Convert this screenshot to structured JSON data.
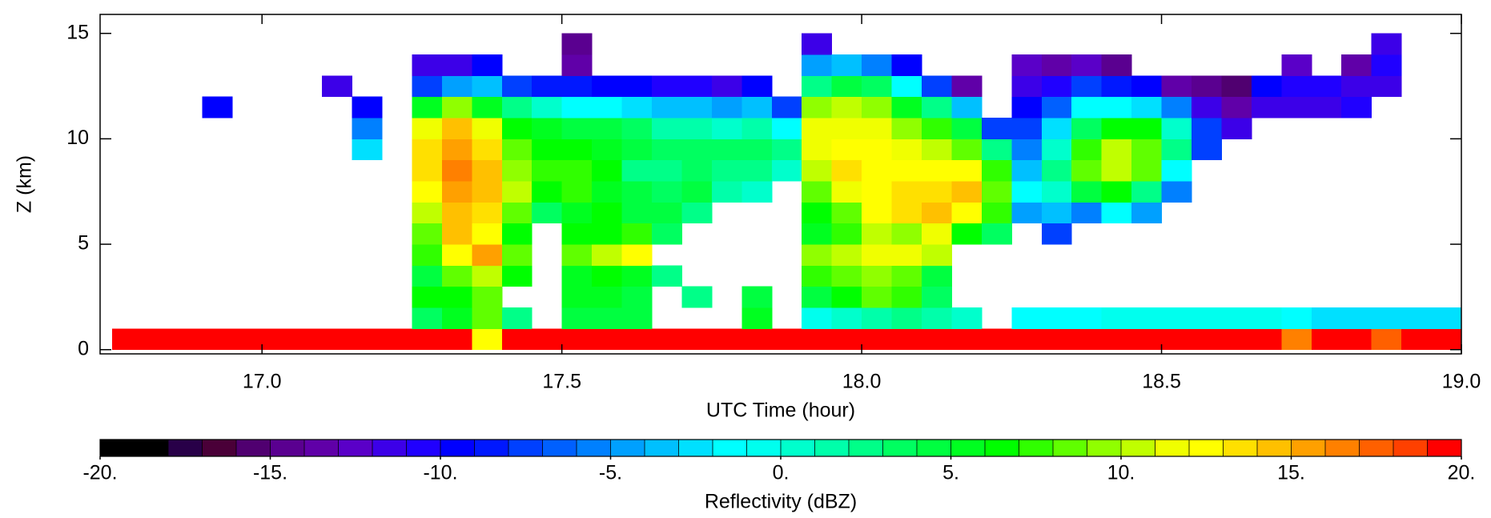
{
  "chart_data": {
    "type": "heatmap",
    "xlabel": "UTC Time (hour)",
    "ylabel": "Z (km)",
    "xlim": [
      16.73,
      19.0
    ],
    "ylim": [
      -0.2,
      15.9
    ],
    "xticks": [
      {
        "value": 17.0,
        "label": "17.0"
      },
      {
        "value": 17.5,
        "label": "17.5"
      },
      {
        "value": 18.0,
        "label": "18.0"
      },
      {
        "value": 18.5,
        "label": "18.5"
      },
      {
        "value": 19.0,
        "label": "19.0"
      }
    ],
    "yticks": [
      0,
      5,
      10,
      15
    ],
    "x": [
      16.775,
      16.825,
      16.875,
      16.925,
      16.975,
      17.025,
      17.075,
      17.125,
      17.175,
      17.225,
      17.275,
      17.325,
      17.375,
      17.425,
      17.475,
      17.525,
      17.575,
      17.625,
      17.675,
      17.725,
      17.775,
      17.825,
      17.875,
      17.925,
      17.975,
      18.025,
      18.075,
      18.125,
      18.175,
      18.225,
      18.275,
      18.325,
      18.375,
      18.425,
      18.475,
      18.525,
      18.575,
      18.625,
      18.675,
      18.725,
      18.775,
      18.825,
      18.875,
      18.925,
      18.975
    ],
    "y": [
      0.5,
      1.5,
      2.5,
      3.5,
      4.5,
      5.5,
      6.5,
      7.5,
      8.5,
      9.5,
      10.5,
      11.5,
      12.5,
      13.5,
      14.5,
      15.5
    ],
    "values": [
      [
        19,
        null,
        null,
        null,
        null,
        null,
        null,
        null,
        null,
        null,
        null,
        null,
        null,
        null,
        null,
        null
      ],
      [
        19,
        null,
        null,
        null,
        null,
        null,
        null,
        null,
        null,
        null,
        null,
        null,
        null,
        null,
        null,
        null
      ],
      [
        19,
        null,
        null,
        null,
        null,
        null,
        null,
        null,
        null,
        null,
        null,
        null,
        null,
        null,
        null,
        null
      ],
      [
        19,
        null,
        null,
        null,
        null,
        null,
        null,
        null,
        null,
        null,
        null,
        -10,
        null,
        null,
        null,
        null
      ],
      [
        19,
        null,
        null,
        null,
        null,
        null,
        null,
        null,
        null,
        null,
        null,
        null,
        null,
        null,
        null,
        null
      ],
      [
        19,
        null,
        null,
        null,
        null,
        null,
        null,
        null,
        null,
        null,
        null,
        null,
        null,
        null,
        null,
        null
      ],
      [
        19,
        null,
        null,
        null,
        null,
        null,
        null,
        null,
        null,
        null,
        null,
        null,
        null,
        null,
        null,
        null
      ],
      [
        19,
        null,
        null,
        null,
        null,
        null,
        null,
        null,
        null,
        null,
        null,
        null,
        -12,
        null,
        null,
        null
      ],
      [
        19,
        null,
        null,
        null,
        null,
        null,
        null,
        null,
        null,
        -3,
        -6,
        -10,
        null,
        null,
        null,
        null
      ],
      [
        19,
        null,
        null,
        null,
        null,
        null,
        null,
        null,
        null,
        null,
        null,
        null,
        null,
        null,
        null,
        null
      ],
      [
        19,
        3,
        6,
        4,
        7,
        8,
        10,
        12,
        13,
        13,
        11,
        5,
        -8,
        -12,
        null,
        null
      ],
      [
        19,
        5,
        6,
        8,
        12,
        14,
        14,
        15,
        16,
        15,
        14,
        9,
        -5,
        -12,
        null,
        null
      ],
      [
        12,
        8,
        8,
        10,
        15,
        12,
        13,
        14,
        14,
        13,
        11,
        5,
        -4,
        -10,
        null,
        null
      ],
      [
        19,
        2,
        null,
        6,
        8,
        6,
        8,
        10,
        9,
        8,
        6,
        2,
        -8,
        null,
        null,
        null
      ],
      [
        19,
        null,
        null,
        null,
        null,
        null,
        3,
        6,
        7,
        6,
        5,
        0,
        -9,
        null,
        null,
        null
      ],
      [
        19,
        4,
        5,
        5,
        8,
        6,
        5,
        7,
        7,
        6,
        4,
        -2,
        -9,
        -14,
        -15,
        null
      ],
      [
        19,
        4,
        5,
        6,
        10,
        6,
        6,
        5,
        6,
        5,
        4,
        -2,
        -10,
        null,
        null,
        null
      ],
      [
        19,
        4,
        4,
        5,
        12,
        7,
        4,
        4,
        2,
        4,
        3,
        -3,
        -10,
        null,
        null,
        null
      ],
      [
        19,
        null,
        null,
        2,
        null,
        3,
        4,
        3,
        2,
        3,
        1,
        -4,
        -11,
        null,
        null,
        null
      ],
      [
        19,
        null,
        2,
        null,
        null,
        null,
        2,
        4,
        3,
        3,
        1,
        -4,
        -11,
        null,
        null,
        null
      ],
      [
        19,
        null,
        null,
        null,
        null,
        null,
        null,
        1,
        2,
        3,
        0,
        -5,
        -12,
        null,
        null,
        null
      ],
      [
        19,
        5,
        4,
        null,
        null,
        null,
        null,
        0,
        2,
        3,
        1,
        -4,
        -10,
        null,
        null,
        null
      ],
      [
        19,
        null,
        null,
        null,
        null,
        null,
        null,
        null,
        0,
        2,
        -2,
        -8,
        null,
        null,
        null,
        null
      ],
      [
        19,
        -1,
        4,
        7,
        9,
        5,
        6,
        8,
        10,
        11,
        11,
        9,
        2,
        -5,
        -12,
        null
      ],
      [
        19,
        0,
        6,
        8,
        10,
        7,
        8,
        11,
        13,
        12,
        11,
        10,
        4,
        -4,
        null,
        null
      ],
      [
        19,
        1,
        8,
        9,
        11,
        10,
        12,
        12,
        12,
        12,
        11,
        9,
        3,
        -6,
        null,
        null
      ],
      [
        19,
        2,
        7,
        8,
        11,
        9,
        13,
        13,
        12,
        11,
        9,
        5,
        -2,
        -10,
        null,
        null
      ],
      [
        19,
        1,
        3,
        4,
        10,
        11,
        14,
        13,
        12,
        10,
        7,
        2,
        -8,
        null,
        null,
        null
      ],
      [
        19,
        0,
        null,
        null,
        null,
        6,
        12,
        14,
        12,
        8,
        4,
        -4,
        -14,
        null,
        null,
        null
      ],
      [
        19,
        null,
        null,
        null,
        null,
        3,
        7,
        8,
        7,
        2,
        -8,
        null,
        null,
        null,
        null,
        null
      ],
      [
        19,
        -2,
        null,
        null,
        null,
        null,
        -5,
        -2,
        -4,
        -6,
        -8,
        -10,
        -12,
        -13,
        null,
        null
      ],
      [
        19,
        -2,
        null,
        null,
        null,
        -8,
        -4,
        0,
        2,
        0,
        -3,
        -7,
        -11,
        -14,
        null,
        null
      ],
      [
        19,
        -2,
        null,
        null,
        null,
        null,
        -6,
        4,
        8,
        7,
        3,
        -2,
        -8,
        -13,
        null,
        null
      ],
      [
        19,
        -1,
        null,
        null,
        null,
        null,
        -2,
        6,
        10,
        10,
        6,
        -2,
        -9,
        -15,
        null,
        null
      ],
      [
        19,
        -1,
        null,
        null,
        null,
        null,
        -5,
        2,
        8,
        8,
        6,
        -3,
        -10,
        null,
        null,
        null
      ],
      [
        19,
        -1,
        null,
        null,
        null,
        null,
        null,
        -6,
        -2,
        2,
        0,
        -6,
        -14,
        null,
        null,
        null
      ],
      [
        19,
        -1,
        null,
        null,
        null,
        null,
        null,
        null,
        null,
        -8,
        -8,
        -12,
        -15,
        null,
        null,
        null
      ],
      [
        19,
        -1,
        null,
        null,
        null,
        null,
        null,
        null,
        null,
        null,
        -12,
        -14,
        -16,
        null,
        null,
        null
      ],
      [
        19,
        -1,
        null,
        null,
        null,
        null,
        null,
        null,
        null,
        null,
        null,
        -12,
        -10,
        null,
        null,
        null
      ],
      [
        16,
        -2,
        null,
        null,
        null,
        null,
        null,
        null,
        null,
        null,
        null,
        -12,
        -11,
        -13,
        null,
        null
      ],
      [
        19,
        -3,
        null,
        null,
        null,
        null,
        null,
        null,
        null,
        null,
        null,
        -12,
        -11,
        null,
        null,
        null
      ],
      [
        19,
        -3,
        null,
        null,
        null,
        null,
        null,
        null,
        null,
        null,
        null,
        -11,
        -12,
        -14,
        null,
        null
      ],
      [
        17,
        -3,
        null,
        null,
        null,
        null,
        null,
        null,
        null,
        null,
        null,
        null,
        -12,
        -11,
        -12,
        null
      ],
      [
        19,
        -3,
        null,
        null,
        null,
        null,
        null,
        null,
        null,
        null,
        null,
        null,
        null,
        null,
        null,
        null
      ],
      [
        19,
        -3,
        null,
        null,
        null,
        null,
        null,
        null,
        null,
        null,
        null,
        null,
        null,
        null,
        null,
        null
      ]
    ],
    "colorbar": {
      "label": "Reflectivity (dBZ)",
      "lim": [
        -20,
        20
      ],
      "ticks": [
        {
          "value": -20,
          "label": "-20."
        },
        {
          "value": -15,
          "label": "-15."
        },
        {
          "value": -10,
          "label": "-10."
        },
        {
          "value": -5,
          "label": "-5."
        },
        {
          "value": 0,
          "label": "0."
        },
        {
          "value": 5,
          "label": "5."
        },
        {
          "value": 10,
          "label": "10."
        },
        {
          "value": 15,
          "label": "15."
        },
        {
          "value": 20,
          "label": "20."
        }
      ],
      "colors": [
        "#000000",
        "#000000",
        "#280048",
        "#4a0038",
        "#500070",
        "#5a0090",
        "#6000a8",
        "#5a00c8",
        "#3c00e8",
        "#2000ff",
        "#0000ff",
        "#0018ff",
        "#0040ff",
        "#0060ff",
        "#0080ff",
        "#00a0ff",
        "#00c0ff",
        "#00e0ff",
        "#00ffff",
        "#00ffee",
        "#00ffcc",
        "#00ffaa",
        "#00ff88",
        "#00ff60",
        "#00ff40",
        "#00ff20",
        "#00ff00",
        "#30ff00",
        "#60ff00",
        "#90ff00",
        "#c0ff00",
        "#f0ff00",
        "#ffff00",
        "#ffe000",
        "#ffc000",
        "#ffa000",
        "#ff8000",
        "#ff6000",
        "#ff4000",
        "#ff0000"
      ]
    }
  }
}
